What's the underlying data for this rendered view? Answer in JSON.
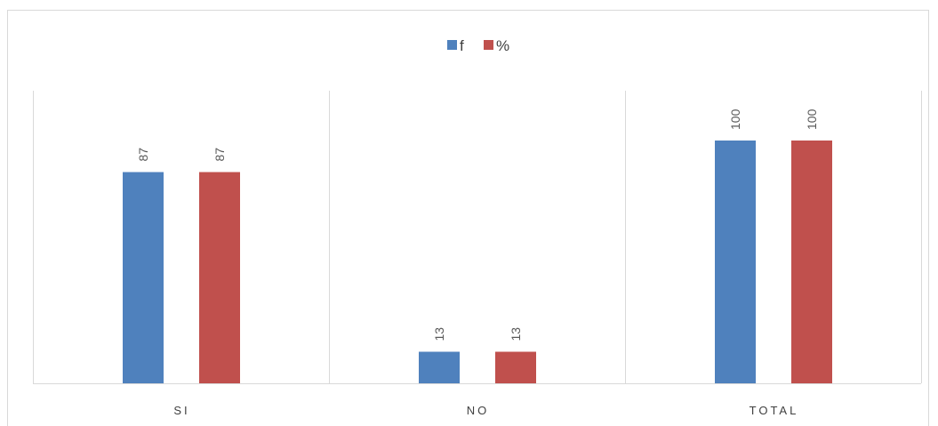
{
  "chart_data": {
    "type": "bar",
    "categories": [
      "SI",
      "NO",
      "TOTAL"
    ],
    "series": [
      {
        "name": "f",
        "values": [
          87,
          13,
          100
        ],
        "color": "#4f81bd"
      },
      {
        "name": "%",
        "values": [
          87,
          13,
          100
        ],
        "color": "#c0504d"
      }
    ],
    "ylim": [
      0,
      120
    ],
    "grid": false,
    "legend": "top-center",
    "data_labels": "rotated-vertical",
    "category_separators": true
  }
}
